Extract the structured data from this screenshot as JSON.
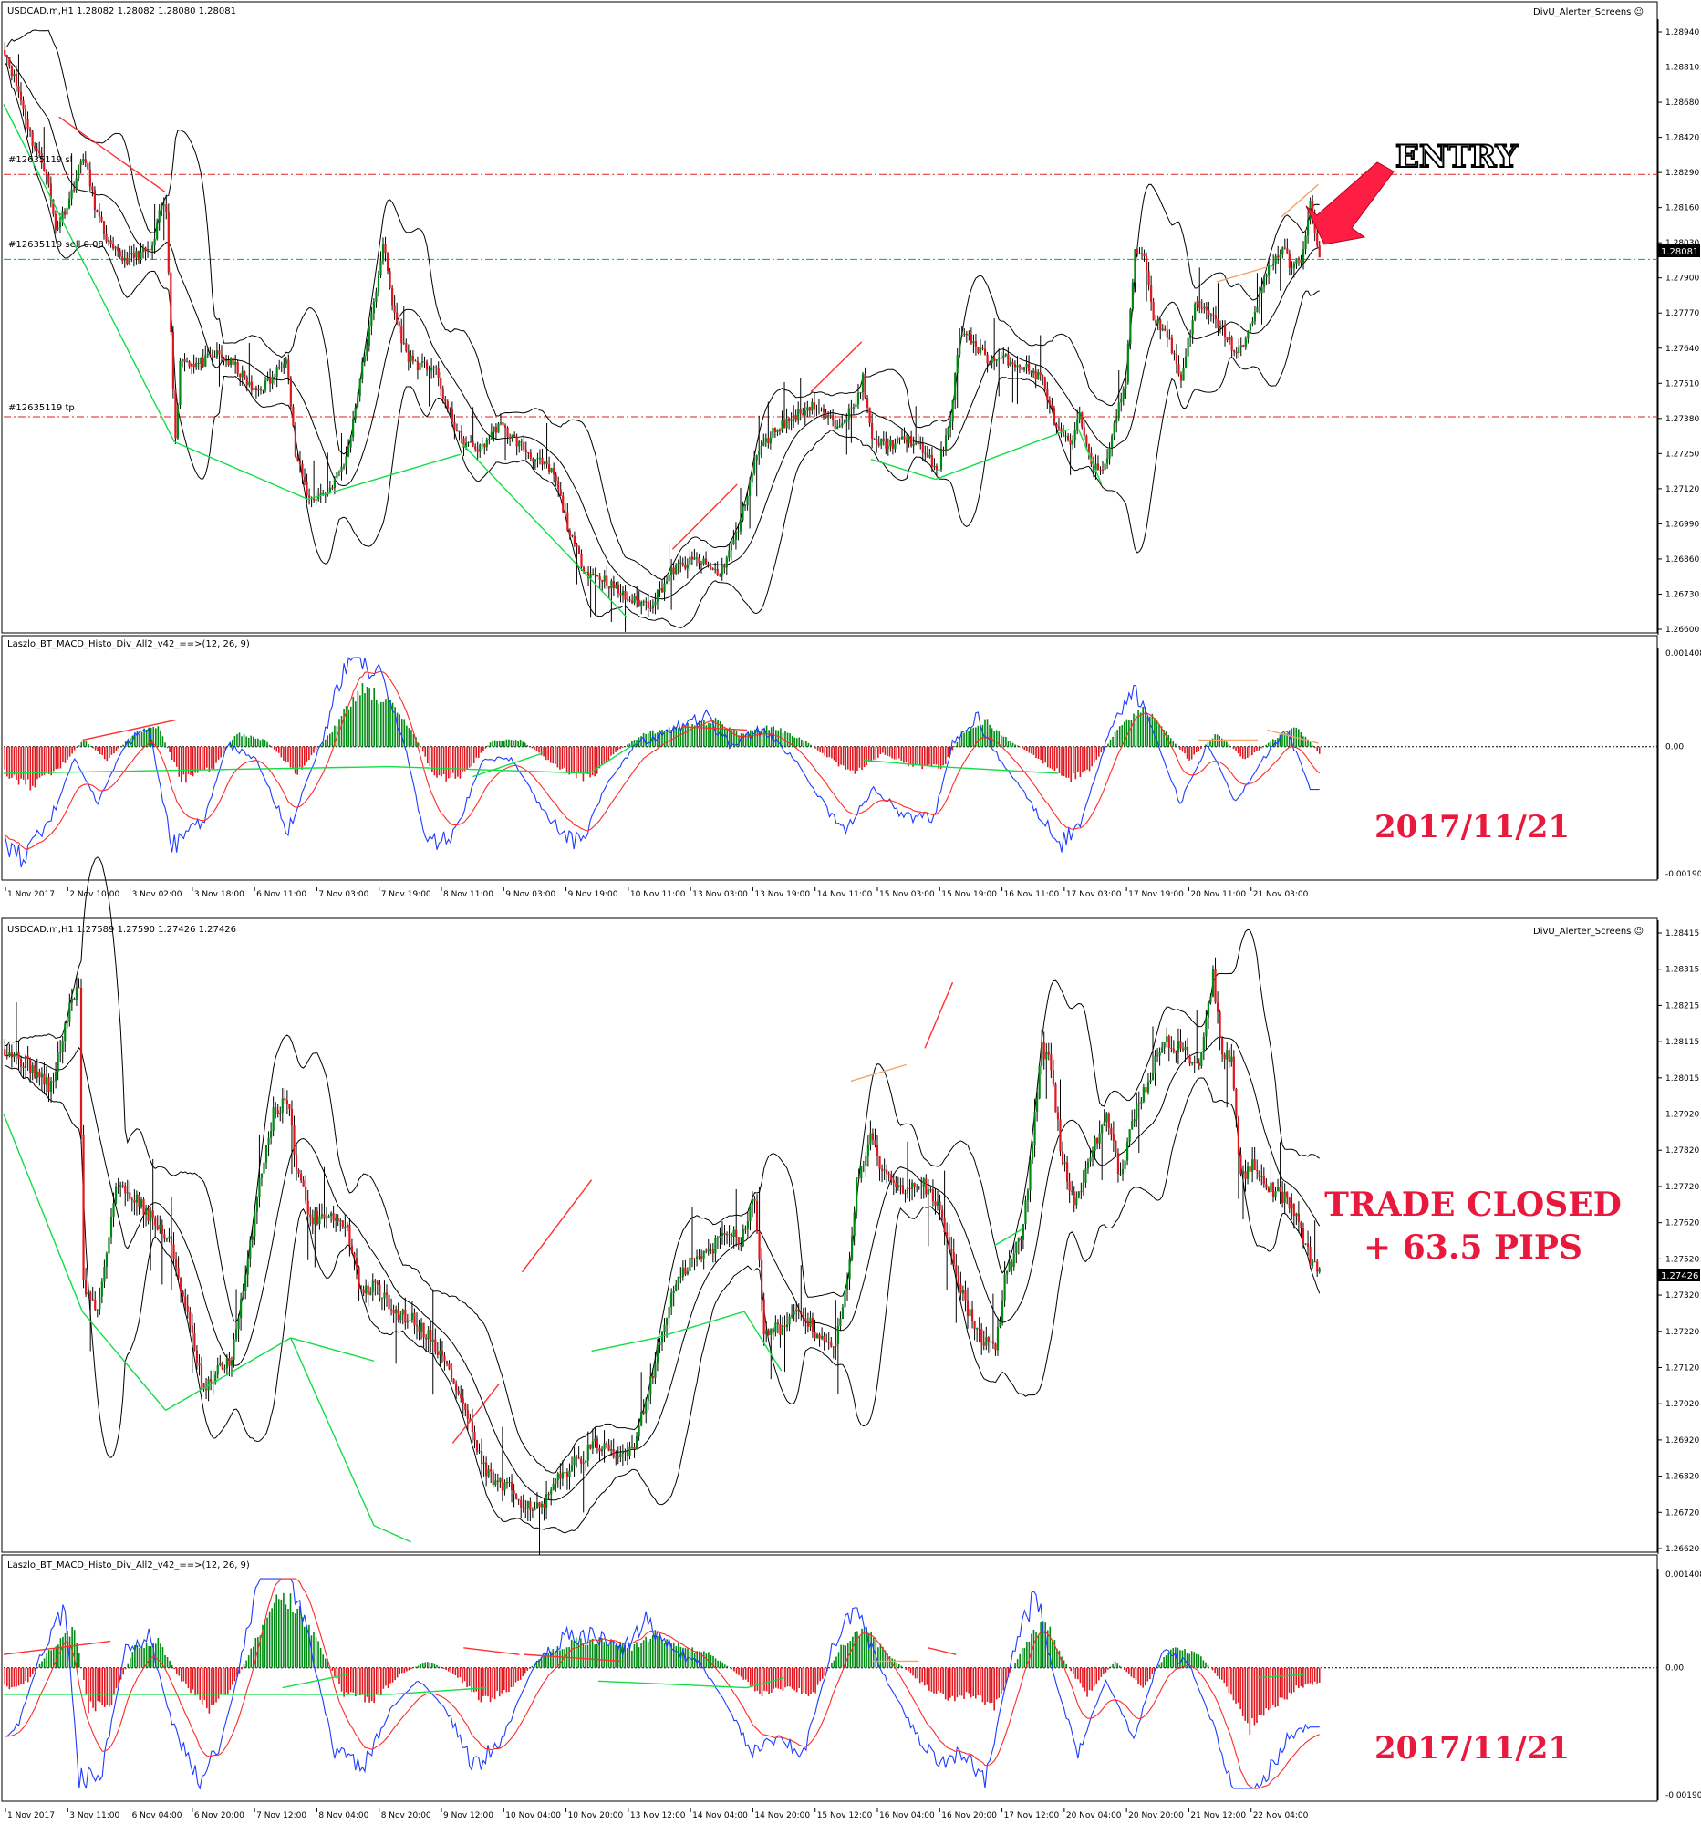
{
  "colors": {
    "bull": "#008a13",
    "bear": "#e0151d",
    "band": "#000000",
    "macd_blue": "#1e3cff",
    "macd_red": "#ff2a2a",
    "div_green": "#11dd44",
    "div_red": "#ff3030",
    "div_orange": "#f6a26a",
    "level_red": "#dd2222",
    "level_green": "#00b050",
    "accent": "#e8193c"
  },
  "chart1": {
    "header": "USDCAD.m,H1  1.28082 1.28082 1.28080 1.28081",
    "indicator_name": "DivU_Alerter_Screens ☺",
    "price_labels": [
      "1.28940",
      "1.28810",
      "1.28680",
      "1.28420",
      "1.28290",
      "1.28160",
      "1.28030",
      "1.27900",
      "1.27770",
      "1.27640",
      "1.27510",
      "1.27380",
      "1.27250",
      "1.27120",
      "1.26990",
      "1.26860",
      "1.26730",
      "1.26600"
    ],
    "current_price": "1.28081",
    "order_labels": {
      "sl": "#12635119 sl",
      "sell": "#12635119 sell 0.08",
      "tp": "#12635119 tp"
    },
    "annotation_entry": "ENTRY",
    "macd_label": "Laszlo_BT_MACD_Histo_Div_All2_v42_==>(12, 26, 9)",
    "macd_scale": [
      "0.001408",
      "0.00",
      "-0.001909"
    ],
    "date_stamp": "2017/11/21",
    "time_labels": [
      "1 Nov 2017",
      "2 Nov 10:00",
      "3 Nov 02:00",
      "3 Nov 18:00",
      "6 Nov 11:00",
      "7 Nov 03:00",
      "7 Nov 19:00",
      "8 Nov 11:00",
      "9 Nov 03:00",
      "9 Nov 19:00",
      "10 Nov 11:00",
      "13 Nov 03:00",
      "13 Nov 19:00",
      "14 Nov 11:00",
      "15 Nov 03:00",
      "15 Nov 19:00",
      "16 Nov 11:00",
      "17 Nov 03:00",
      "17 Nov 19:00",
      "20 Nov 11:00",
      "21 Nov 03:00"
    ]
  },
  "chart2": {
    "header": "USDCAD.m,H1  1.27589 1.27590 1.27426 1.27426",
    "indicator_name": "DivU_Alerter_Screens ☺",
    "price_labels": [
      "1.28415",
      "1.28315",
      "1.28215",
      "1.28115",
      "1.28015",
      "1.27920",
      "1.27820",
      "1.27720",
      "1.27620",
      "1.27520",
      "1.27320",
      "1.27220",
      "1.27120",
      "1.27020",
      "1.26920",
      "1.26820",
      "1.26720",
      "1.26620"
    ],
    "current_price": "1.27426",
    "annotation_line1": "TRADE CLOSED",
    "annotation_line2": "+ 63.5 PIPS",
    "macd_label": "Laszlo_BT_MACD_Histo_Div_All2_v42_==>(12, 26, 9)",
    "macd_scale": [
      "0.001408",
      "0.00",
      "-0.001909"
    ],
    "date_stamp": "2017/11/21",
    "time_labels": [
      "1 Nov 2017",
      "3 Nov 11:00",
      "6 Nov 04:00",
      "6 Nov 20:00",
      "7 Nov 12:00",
      "8 Nov 04:00",
      "8 Nov 20:00",
      "9 Nov 12:00",
      "10 Nov 04:00",
      "10 Nov 20:00",
      "13 Nov 12:00",
      "14 Nov 04:00",
      "14 Nov 20:00",
      "15 Nov 12:00",
      "16 Nov 04:00",
      "16 Nov 20:00",
      "17 Nov 12:00",
      "20 Nov 04:00",
      "20 Nov 20:00",
      "21 Nov 12:00",
      "22 Nov 04:00"
    ]
  },
  "chart_data": [
    {
      "type": "candlestick",
      "title": "USDCAD.m,H1  1.28082 1.28082 1.28080 1.28081",
      "ylim": [
        1.266,
        1.2899
      ],
      "price_path": [
        [
          0,
          1.2892
        ],
        [
          6,
          1.2875
        ],
        [
          12,
          1.2855
        ],
        [
          18,
          1.2843
        ],
        [
          22,
          1.282
        ],
        [
          28,
          1.2832
        ],
        [
          34,
          1.285
        ],
        [
          40,
          1.2826
        ],
        [
          46,
          1.2812
        ],
        [
          52,
          1.2808
        ],
        [
          58,
          1.281
        ],
        [
          64,
          1.2812
        ],
        [
          68,
          1.283
        ],
        [
          70,
          1.2827
        ],
        [
          74,
          1.2735
        ],
        [
          76,
          1.2768
        ],
        [
          84,
          1.2766
        ],
        [
          92,
          1.277
        ],
        [
          100,
          1.2765
        ],
        [
          108,
          1.2755
        ],
        [
          116,
          1.276
        ],
        [
          122,
          1.277
        ],
        [
          126,
          1.273
        ],
        [
          132,
          1.2712
        ],
        [
          140,
          1.2715
        ],
        [
          148,
          1.2728
        ],
        [
          154,
          1.276
        ],
        [
          160,
          1.279
        ],
        [
          164,
          1.2815
        ],
        [
          168,
          1.279
        ],
        [
          174,
          1.277
        ],
        [
          180,
          1.2765
        ],
        [
          186,
          1.2765
        ],
        [
          192,
          1.2748
        ],
        [
          198,
          1.2735
        ],
        [
          206,
          1.2732
        ],
        [
          214,
          1.2742
        ],
        [
          222,
          1.2735
        ],
        [
          230,
          1.2728
        ],
        [
          238,
          1.2722
        ],
        [
          246,
          1.2695
        ],
        [
          252,
          1.2683
        ],
        [
          260,
          1.268
        ],
        [
          270,
          1.2672
        ],
        [
          280,
          1.267
        ],
        [
          290,
          1.2684
        ],
        [
          300,
          1.2688
        ],
        [
          310,
          1.2682
        ],
        [
          318,
          1.27
        ],
        [
          326,
          1.273
        ],
        [
          334,
          1.274
        ],
        [
          342,
          1.2745
        ],
        [
          350,
          1.275
        ],
        [
          360,
          1.2742
        ],
        [
          368,
          1.2748
        ],
        [
          372,
          1.276
        ],
        [
          376,
          1.2735
        ],
        [
          384,
          1.2734
        ],
        [
          392,
          1.2736
        ],
        [
          400,
          1.273
        ],
        [
          404,
          1.2722
        ],
        [
          410,
          1.2745
        ],
        [
          414,
          1.2778
        ],
        [
          420,
          1.2775
        ],
        [
          426,
          1.2768
        ],
        [
          434,
          1.2768
        ],
        [
          442,
          1.2765
        ],
        [
          450,
          1.276
        ],
        [
          456,
          1.274
        ],
        [
          462,
          1.2733
        ],
        [
          466,
          1.2745
        ],
        [
          472,
          1.2725
        ],
        [
          476,
          1.2722
        ],
        [
          480,
          1.2738
        ],
        [
          486,
          1.276
        ],
        [
          490,
          1.2812
        ],
        [
          494,
          1.281
        ],
        [
          498,
          1.2785
        ],
        [
          504,
          1.2778
        ],
        [
          510,
          1.276
        ],
        [
          516,
          1.279
        ],
        [
          522,
          1.2786
        ],
        [
          528,
          1.278
        ],
        [
          534,
          1.277
        ],
        [
          538,
          1.2775
        ],
        [
          542,
          1.2788
        ],
        [
          548,
          1.2805
        ],
        [
          554,
          1.2812
        ],
        [
          558,
          1.2805
        ],
        [
          562,
          1.2808
        ],
        [
          566,
          1.283
        ],
        [
          570,
          1.2808
        ]
      ],
      "levels": {
        "sl": 1.2842,
        "sell_entry": 1.2808,
        "tp": 1.2745
      }
    },
    {
      "type": "bar",
      "title": "Laszlo_BT_MACD_Histo_Div_All2_v42_==>(12, 26, 9)",
      "ylim": [
        -0.001909,
        0.001408
      ],
      "histogram_path": [
        [
          0,
          -0.0004
        ],
        [
          12,
          -0.0006
        ],
        [
          24,
          -0.0003
        ],
        [
          34,
          0.0001
        ],
        [
          44,
          -0.0002
        ],
        [
          56,
          0.0002
        ],
        [
          66,
          0.0003
        ],
        [
          76,
          -0.0005
        ],
        [
          90,
          -0.0003
        ],
        [
          100,
          0.0002
        ],
        [
          112,
          0.0001
        ],
        [
          126,
          -0.0004
        ],
        [
          140,
          0.0002
        ],
        [
          154,
          0.0009
        ],
        [
          164,
          0.0007
        ],
        [
          176,
          0.0002
        ],
        [
          186,
          -0.0005
        ],
        [
          198,
          -0.0004
        ],
        [
          210,
          0.0001
        ],
        [
          222,
          0.0001
        ],
        [
          238,
          -0.0003
        ],
        [
          252,
          -0.0005
        ],
        [
          262,
          -0.0001
        ],
        [
          276,
          0.0002
        ],
        [
          292,
          0.0003
        ],
        [
          306,
          0.0004
        ],
        [
          316,
          0.0002
        ],
        [
          330,
          0.0003
        ],
        [
          344,
          0.0001
        ],
        [
          356,
          -0.0002
        ],
        [
          366,
          -0.0004
        ],
        [
          378,
          -0.0001
        ],
        [
          392,
          -0.0003
        ],
        [
          404,
          -0.0003
        ],
        [
          412,
          0.0002
        ],
        [
          422,
          0.0004
        ],
        [
          432,
          0.0001
        ],
        [
          446,
          -0.0002
        ],
        [
          458,
          -0.0005
        ],
        [
          468,
          -0.0003
        ],
        [
          480,
          0.0003
        ],
        [
          490,
          0.0006
        ],
        [
          500,
          0.0002
        ],
        [
          510,
          -0.0002
        ],
        [
          522,
          0.0002
        ],
        [
          534,
          -0.0002
        ],
        [
          546,
          0.0001
        ],
        [
          556,
          0.0003
        ],
        [
          566,
          -0.0001
        ]
      ]
    },
    {
      "type": "candlestick",
      "title": "USDCAD.m,H1  1.27589 1.27590 1.27426 1.27426",
      "ylim": [
        1.2658,
        1.2845
      ],
      "price_path": [
        [
          0,
          1.281
        ],
        [
          10,
          1.2805
        ],
        [
          20,
          1.2798
        ],
        [
          28,
          1.2822
        ],
        [
          32,
          1.283
        ],
        [
          34,
          1.2738
        ],
        [
          40,
          1.273
        ],
        [
          48,
          1.2768
        ],
        [
          56,
          1.2765
        ],
        [
          64,
          1.2758
        ],
        [
          72,
          1.275
        ],
        [
          80,
          1.2725
        ],
        [
          86,
          1.2705
        ],
        [
          92,
          1.2712
        ],
        [
          98,
          1.2716
        ],
        [
          104,
          1.274
        ],
        [
          110,
          1.277
        ],
        [
          116,
          1.279
        ],
        [
          122,
          1.2795
        ],
        [
          126,
          1.2775
        ],
        [
          132,
          1.2758
        ],
        [
          140,
          1.276
        ],
        [
          148,
          1.2755
        ],
        [
          154,
          1.2735
        ],
        [
          160,
          1.2738
        ],
        [
          168,
          1.273
        ],
        [
          176,
          1.2728
        ],
        [
          184,
          1.2722
        ],
        [
          192,
          1.2712
        ],
        [
          200,
          1.2698
        ],
        [
          206,
          1.2683
        ],
        [
          212,
          1.2678
        ],
        [
          218,
          1.2676
        ],
        [
          224,
          1.2672
        ],
        [
          232,
          1.267
        ],
        [
          240,
          1.268
        ],
        [
          248,
          1.2685
        ],
        [
          256,
          1.269
        ],
        [
          264,
          1.2685
        ],
        [
          272,
          1.269
        ],
        [
          280,
          1.2712
        ],
        [
          288,
          1.2735
        ],
        [
          296,
          1.2745
        ],
        [
          304,
          1.2748
        ],
        [
          312,
          1.2755
        ],
        [
          318,
          1.2752
        ],
        [
          324,
          1.2765
        ],
        [
          328,
          1.2725
        ],
        [
          336,
          1.2725
        ],
        [
          344,
          1.273
        ],
        [
          352,
          1.2722
        ],
        [
          358,
          1.2718
        ],
        [
          364,
          1.2738
        ],
        [
          368,
          1.277
        ],
        [
          374,
          1.2782
        ],
        [
          380,
          1.2772
        ],
        [
          388,
          1.2768
        ],
        [
          396,
          1.277
        ],
        [
          404,
          1.276
        ],
        [
          410,
          1.2745
        ],
        [
          416,
          1.273
        ],
        [
          422,
          1.2722
        ],
        [
          428,
          1.2718
        ],
        [
          432,
          1.274
        ],
        [
          440,
          1.2755
        ],
        [
          448,
          1.281
        ],
        [
          452,
          1.2805
        ],
        [
          456,
          1.278
        ],
        [
          462,
          1.2762
        ],
        [
          468,
          1.2775
        ],
        [
          476,
          1.279
        ],
        [
          482,
          1.277
        ],
        [
          488,
          1.279
        ],
        [
          494,
          1.28
        ],
        [
          500,
          1.2812
        ],
        [
          508,
          1.281
        ],
        [
          516,
          1.2805
        ],
        [
          522,
          1.2832
        ],
        [
          526,
          1.2808
        ],
        [
          530,
          1.2808
        ],
        [
          534,
          1.277
        ],
        [
          540,
          1.2775
        ],
        [
          546,
          1.2768
        ],
        [
          552,
          1.2765
        ],
        [
          558,
          1.276
        ],
        [
          564,
          1.2745
        ],
        [
          568,
          1.2742
        ]
      ],
      "levels": {}
    },
    {
      "type": "bar",
      "title": "Laszlo_BT_MACD_Histo_Div_All2_v42_==>(12, 26, 9)",
      "ylim": [
        -0.001909,
        0.001408
      ],
      "histogram_path": [
        [
          0,
          -0.0003
        ],
        [
          10,
          -0.0002
        ],
        [
          20,
          0.0003
        ],
        [
          30,
          0.0006
        ],
        [
          36,
          -0.0006
        ],
        [
          46,
          -0.0005
        ],
        [
          56,
          0.0003
        ],
        [
          66,
          0.0004
        ],
        [
          76,
          -0.0002
        ],
        [
          88,
          -0.0006
        ],
        [
          98,
          -0.0003
        ],
        [
          108,
          0.0004
        ],
        [
          118,
          0.0011
        ],
        [
          126,
          0.0009
        ],
        [
          136,
          0.0003
        ],
        [
          146,
          -0.0004
        ],
        [
          158,
          -0.0005
        ],
        [
          170,
          -0.0001
        ],
        [
          182,
          0.0001
        ],
        [
          194,
          -0.0001
        ],
        [
          206,
          -0.0005
        ],
        [
          218,
          -0.0003
        ],
        [
          232,
          0.0002
        ],
        [
          246,
          0.0004
        ],
        [
          258,
          0.0004
        ],
        [
          270,
          0.0003
        ],
        [
          280,
          0.0005
        ],
        [
          292,
          0.0003
        ],
        [
          304,
          0.0002
        ],
        [
          316,
          -0.0001
        ],
        [
          326,
          -0.0004
        ],
        [
          336,
          -0.0003
        ],
        [
          348,
          -0.0004
        ],
        [
          360,
          0.0003
        ],
        [
          370,
          0.0006
        ],
        [
          380,
          0.0002
        ],
        [
          394,
          -0.0002
        ],
        [
          406,
          -0.0005
        ],
        [
          416,
          -0.0004
        ],
        [
          426,
          -0.0006
        ],
        [
          438,
          0.0003
        ],
        [
          448,
          0.0007
        ],
        [
          456,
          0.0001
        ],
        [
          466,
          -0.0004
        ],
        [
          478,
          0.0001
        ],
        [
          490,
          -0.0003
        ],
        [
          502,
          0.0003
        ],
        [
          514,
          0.0002
        ],
        [
          524,
          -0.0002
        ],
        [
          536,
          -0.0009
        ],
        [
          546,
          -0.0006
        ],
        [
          556,
          -0.0003
        ],
        [
          566,
          -0.0002
        ]
      ]
    }
  ]
}
